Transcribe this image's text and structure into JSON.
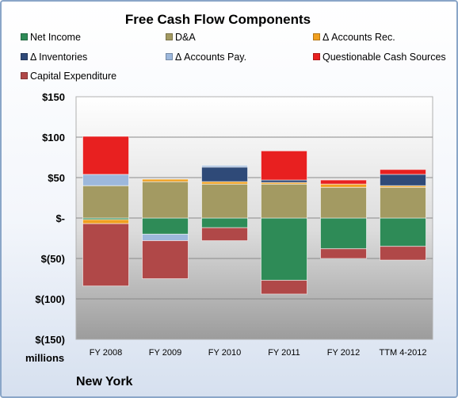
{
  "chart_data": {
    "type": "bar",
    "stacked": true,
    "title": "Free Cash Flow Components",
    "categories": [
      "FY 2008",
      "FY 2009",
      "FY 2010",
      "FY 2011",
      "FY 2012",
      "TTM 4-2012"
    ],
    "series": [
      {
        "name": "Net Income",
        "color": "#2e8b57",
        "values": [
          -2,
          -20,
          -12,
          -77,
          -38,
          -35
        ]
      },
      {
        "name": "D&A",
        "color": "#a39a62",
        "values": [
          40,
          45,
          42,
          42,
          38,
          38
        ]
      },
      {
        "name": "Δ Accounts Rec.",
        "color": "#f0a020",
        "values": [
          -5,
          3,
          3,
          2,
          4,
          2
        ]
      },
      {
        "name": "Δ Inventories",
        "color": "#2f4a78",
        "values": [
          0,
          0,
          18,
          3,
          0,
          14
        ]
      },
      {
        "name": "Δ Accounts Pay.",
        "color": "#9db8dc",
        "values": [
          14,
          -8,
          2,
          0,
          0,
          0
        ]
      },
      {
        "name": "Questionable Cash Sources",
        "color": "#e82020",
        "values": [
          47,
          0,
          0,
          36,
          5,
          6
        ]
      },
      {
        "name": "Capital Expenditure",
        "color": "#b04848",
        "values": [
          -77,
          -47,
          -16,
          -17,
          -12,
          -17
        ]
      }
    ],
    "ylim": [
      -150,
      150
    ],
    "yticks": [
      150,
      100,
      50,
      0,
      -50,
      -100,
      -150
    ],
    "ytick_labels": [
      "$150",
      "$100",
      "$50",
      "$-",
      "$(50)",
      "$(100)",
      "$(150)"
    ],
    "unit_label": "millions",
    "grid": true,
    "legend_position": "top"
  },
  "footer": {
    "label": "New York"
  }
}
